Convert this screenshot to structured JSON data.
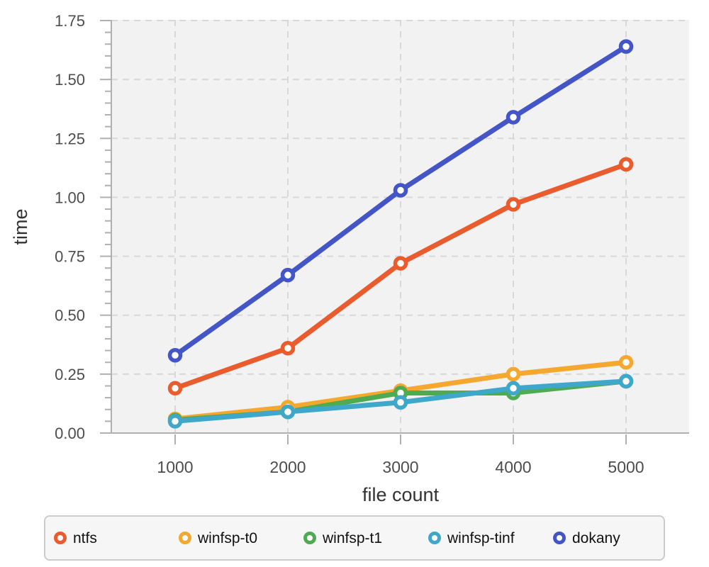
{
  "colors": {
    "plot_background": "#f2f2f3",
    "gridline": "#d8d8d8",
    "axis": "#b0b0b0",
    "tick_label": "#4d4d4d",
    "axis_title": "#333333",
    "legend_background": "#f6f6f6",
    "legend_border": "#cccccc",
    "legend_text": "#111111",
    "marker_fill": "#ffffff"
  },
  "chart_data": {
    "type": "line",
    "xlabel": "file count",
    "ylabel": "time",
    "x": [
      1000,
      2000,
      3000,
      4000,
      5000
    ],
    "x_tick_labels": [
      "1000",
      "2000",
      "3000",
      "4000",
      "5000"
    ],
    "y_tick_values": [
      0,
      0.25,
      0.5,
      0.75,
      1.0,
      1.25,
      1.5,
      1.75
    ],
    "y_tick_labels": [
      "0.00",
      "0.25",
      "0.50",
      "0.75",
      "1.00",
      "1.25",
      "1.50",
      "1.75"
    ],
    "y_minor_tick_step": 0.05,
    "ylim": [
      0,
      1.75
    ],
    "grid": "dashed",
    "marker": "open-circle",
    "legend_position": "bottom",
    "series": [
      {
        "name": "ntfs",
        "color": "#ea5b2d",
        "values": [
          0.19,
          0.36,
          0.72,
          0.97,
          1.14
        ]
      },
      {
        "name": "winfsp-t0",
        "color": "#f4a82f",
        "values": [
          0.06,
          0.11,
          0.18,
          0.25,
          0.3
        ]
      },
      {
        "name": "winfsp-t1",
        "color": "#4fab51",
        "values": [
          0.055,
          0.09,
          0.17,
          0.17,
          0.22
        ]
      },
      {
        "name": "winfsp-tinf",
        "color": "#3fa7c9",
        "values": [
          0.05,
          0.09,
          0.13,
          0.19,
          0.22
        ]
      },
      {
        "name": "dokany",
        "color": "#4355c7",
        "values": [
          0.33,
          0.67,
          1.03,
          1.34,
          1.64
        ]
      }
    ]
  }
}
